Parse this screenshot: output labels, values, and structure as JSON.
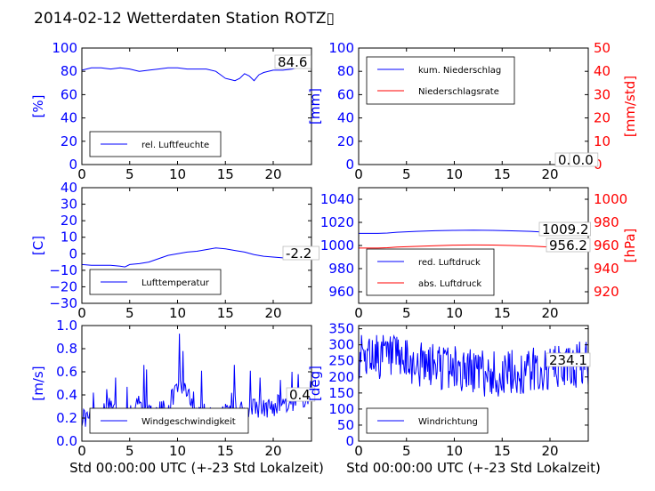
{
  "page": {
    "title": "2014-02-12 Wetterdaten Station ROTZ▯"
  },
  "chart_data": [
    {
      "type": "line",
      "xlim": [
        0,
        24
      ],
      "xticks": [
        "0",
        "5",
        "10",
        "15",
        "20"
      ],
      "ylabel": "[%]",
      "ylim": [
        0,
        100
      ],
      "yticks": [
        "0",
        "20",
        "40",
        "60",
        "80",
        "100"
      ],
      "legend_position": "lower-left",
      "value_label": "84.6",
      "series": [
        {
          "name": "rel. Luftfeuchte",
          "color": "#0000ff",
          "x": [
            0,
            1,
            2,
            3,
            4,
            5,
            6,
            7,
            8,
            9,
            10,
            11,
            12,
            13,
            14,
            14.5,
            15,
            15.5,
            16,
            16.5,
            17,
            17.5,
            18,
            18.5,
            19,
            20,
            21,
            22,
            23,
            23.8
          ],
          "y": [
            81,
            83,
            83,
            82,
            83,
            82,
            80,
            81,
            82,
            83,
            83,
            82,
            82,
            82,
            80,
            77,
            74,
            73,
            72,
            74,
            78,
            76,
            72,
            77,
            79,
            81,
            81,
            82,
            84,
            84.6
          ]
        }
      ]
    },
    {
      "type": "line",
      "xlim": [
        0,
        24
      ],
      "xticks": [
        "0",
        "5",
        "10",
        "15",
        "20"
      ],
      "ylabel": "[mm]",
      "ylabel_right": "[mm/std]",
      "ylim": [
        0,
        100
      ],
      "yticks": [
        "0",
        "20",
        "40",
        "60",
        "80",
        "100"
      ],
      "ylim_right": [
        0,
        50
      ],
      "yticks_right": [
        "0",
        "10",
        "20",
        "30",
        "40",
        "50"
      ],
      "legend_position": "upper-left",
      "value_labels": [
        "0.0",
        "0.0"
      ],
      "series": [
        {
          "name": "kum. Niederschlag",
          "color": "#0000ff",
          "x": [
            0,
            24
          ],
          "y": [
            0,
            0
          ]
        },
        {
          "name": "Niederschlagsrate",
          "color": "#ff0000",
          "axis": "right",
          "x": [
            0,
            24
          ],
          "y": [
            0,
            0
          ]
        }
      ]
    },
    {
      "type": "line",
      "xlim": [
        0,
        24
      ],
      "xticks": [
        "0",
        "5",
        "10",
        "15",
        "20"
      ],
      "ylabel": "[C]",
      "ylim": [
        -30,
        40
      ],
      "yticks": [
        "−30",
        "−20",
        "−10",
        "0",
        "10",
        "20",
        "30",
        "40"
      ],
      "legend_position": "lower-left",
      "value_label": "-2.2",
      "series": [
        {
          "name": "Lufttemperatur",
          "color": "#0000ff",
          "x": [
            0,
            1,
            2,
            3,
            4,
            4.5,
            5,
            6,
            7,
            8,
            9,
            10,
            11,
            12,
            13,
            14,
            15,
            16,
            17,
            18,
            19,
            20,
            21,
            22,
            23,
            23.8
          ],
          "y": [
            -6.5,
            -7,
            -7,
            -7,
            -7.5,
            -8,
            -6.5,
            -6,
            -5,
            -3,
            -1,
            0,
            1,
            1.5,
            2.5,
            3.5,
            3,
            2,
            1,
            -0.5,
            -1.5,
            -2,
            -2.5,
            -2.2,
            -2.3,
            -2.2
          ]
        }
      ]
    },
    {
      "type": "line",
      "xlim": [
        0,
        24
      ],
      "xticks": [
        "0",
        "5",
        "10",
        "15",
        "20"
      ],
      "ylabel_right": "[hPa]",
      "ylim": [
        950,
        1050
      ],
      "yticks": [
        "960",
        "980",
        "1000",
        "1020",
        "1040"
      ],
      "ylim_right": [
        910,
        1010
      ],
      "yticks_right": [
        "920",
        "940",
        "960",
        "980",
        "1000"
      ],
      "legend_position": "lower-left",
      "value_labels": [
        "1009.2",
        "956.2"
      ],
      "series": [
        {
          "name": "red. Luftdruck",
          "color": "#0000ff",
          "x": [
            0,
            2,
            3,
            4,
            6,
            8,
            10,
            12,
            14,
            16,
            18,
            20,
            22,
            24
          ],
          "y": [
            1010.5,
            1010.5,
            1010.8,
            1011.5,
            1012.2,
            1012.8,
            1013.1,
            1013.3,
            1013.1,
            1012.7,
            1012.2,
            1011.2,
            1010.2,
            1009.2
          ]
        },
        {
          "name": "abs. Luftdruck",
          "color": "#ff0000",
          "axis": "right",
          "x": [
            0,
            2,
            3,
            4,
            6,
            8,
            10,
            12,
            14,
            16,
            18,
            20,
            22,
            24
          ],
          "y": [
            957.8,
            957.8,
            958.1,
            958.6,
            959.2,
            959.8,
            960.3,
            960.5,
            960.4,
            960,
            959.5,
            958.6,
            957.4,
            956.2
          ]
        }
      ]
    },
    {
      "type": "line",
      "xlim": [
        0,
        24
      ],
      "xticks": [
        "0",
        "5",
        "10",
        "15",
        "20"
      ],
      "xlabel": "Std 00:00:00 UTC (+-23 Std Lokalzeit)",
      "ylabel": "[m/s]",
      "ylim": [
        0,
        1
      ],
      "yticks": [
        "0.0",
        "0.2",
        "0.4",
        "0.6",
        "0.8",
        "1.0"
      ],
      "legend_position": "lower-center",
      "value_label": "0.4",
      "series": [
        {
          "name": "Windgeschwindigkeit",
          "color": "#0000ff",
          "x_range": [
            0,
            24
          ],
          "samples": 260,
          "base": [
            0.22,
            0.18,
            0.22,
            0.3,
            0.2,
            0.24,
            0.35,
            0.22,
            0.25,
            0.28,
            0.5,
            0.45,
            0.3,
            0.22,
            0.2,
            0.3,
            0.35,
            0.22,
            0.3,
            0.28,
            0.3,
            0.35,
            0.28,
            0.38,
            0.4
          ],
          "peaks": [
            [
              1.2,
              0.42
            ],
            [
              2.6,
              0.45
            ],
            [
              3.5,
              0.55
            ],
            [
              4.7,
              0.47
            ],
            [
              6.5,
              0.66
            ],
            [
              6.8,
              0.62
            ],
            [
              10.2,
              0.93
            ],
            [
              10.6,
              0.78
            ],
            [
              12.5,
              0.61
            ],
            [
              15.9,
              0.66
            ],
            [
              17.6,
              0.61
            ],
            [
              18.6,
              0.55
            ],
            [
              20.8,
              0.53
            ],
            [
              22,
              0.6
            ],
            [
              22.6,
              0.58
            ],
            [
              23.9,
              0.52
            ]
          ],
          "noise": 0.09
        }
      ]
    },
    {
      "type": "line",
      "xlim": [
        0,
        24
      ],
      "xticks": [
        "0",
        "5",
        "10",
        "15",
        "20"
      ],
      "xlabel": "Std 00:00:00 UTC (+-23 Std Lokalzeit)",
      "ylabel": "[deg]",
      "ylim": [
        0,
        360
      ],
      "yticks": [
        "0",
        "50",
        "100",
        "150",
        "200",
        "250",
        "300",
        "350"
      ],
      "legend_position": "lower-left",
      "value_label": "234.1",
      "series": [
        {
          "name": "Windrichtung",
          "color": "#0000ff",
          "x_range": [
            0,
            24
          ],
          "samples": 320,
          "base": [
            260,
            270,
            270,
            260,
            250,
            240,
            240,
            230,
            240,
            230,
            230,
            220,
            220,
            210,
            210,
            200,
            210,
            210,
            220,
            220,
            220,
            230,
            230,
            240,
            240
          ],
          "noise": 75,
          "ymin": 40,
          "ymax": 330
        }
      ]
    }
  ]
}
